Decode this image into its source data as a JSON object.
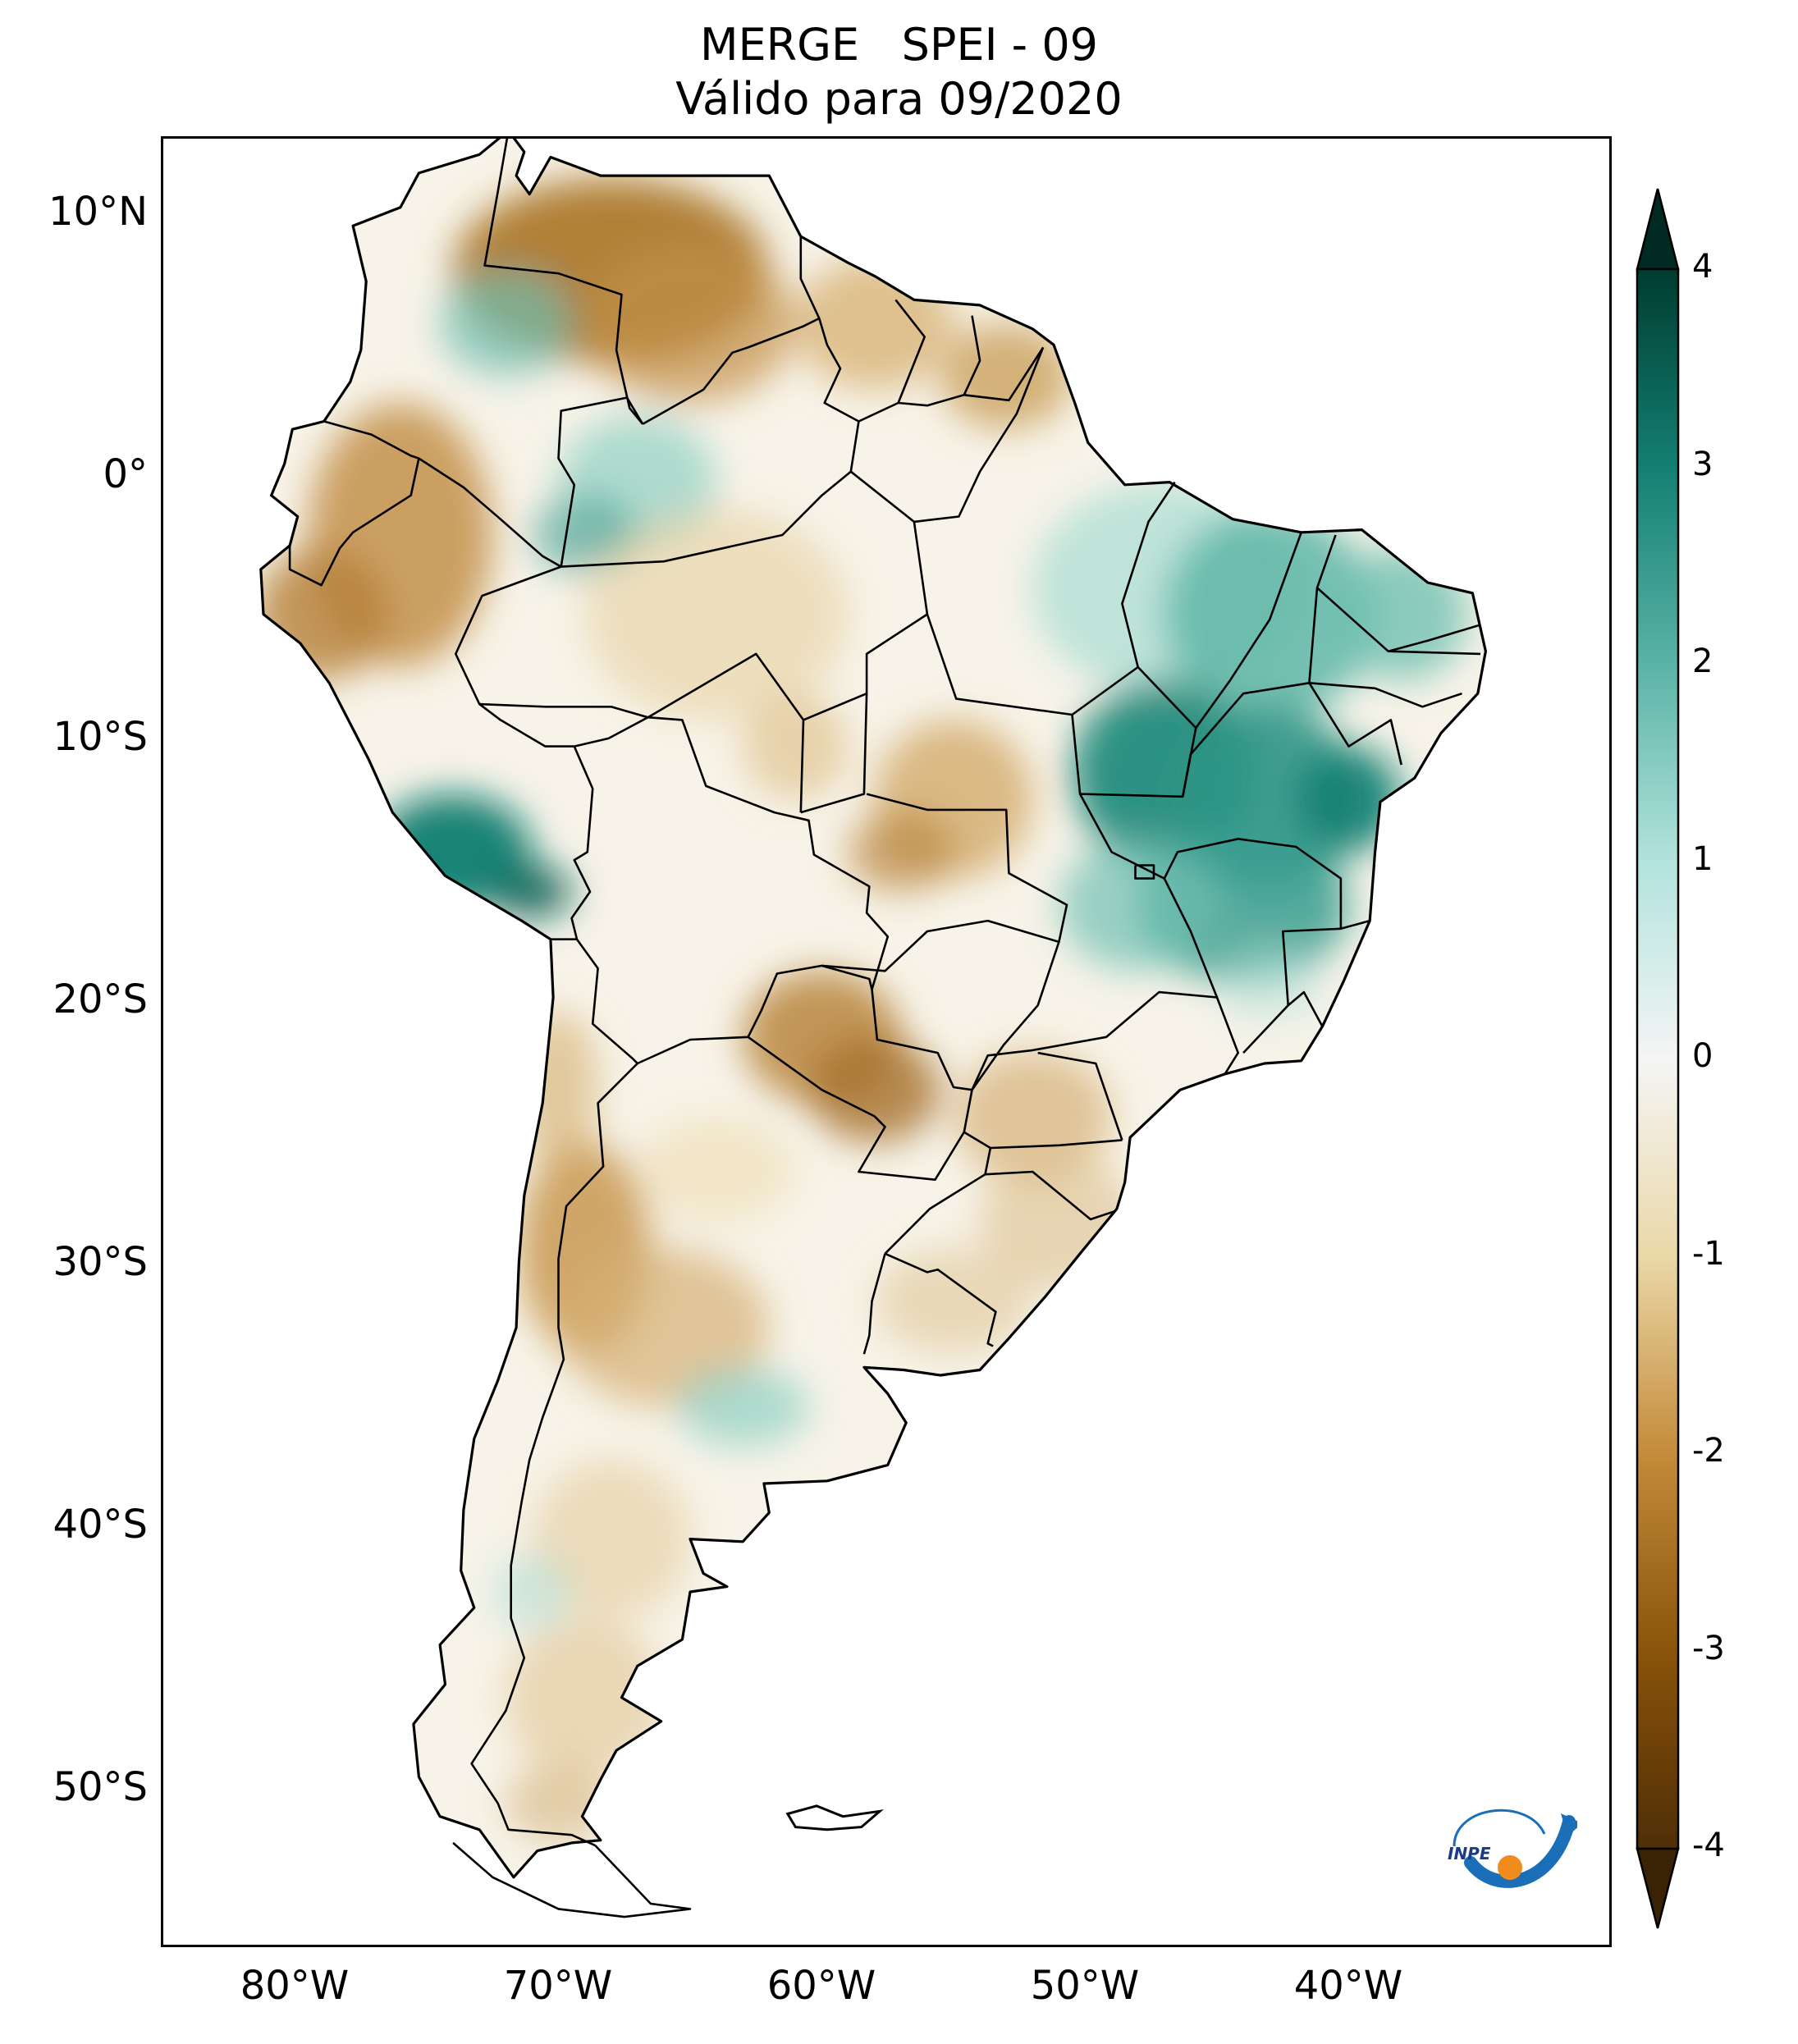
{
  "title": {
    "line1": "MERGE   SPEI - 09",
    "line2": "Válido para 09/2020"
  },
  "map": {
    "region": "South America",
    "projection": "PlateCarree",
    "lon_range": [
      -85,
      -30
    ],
    "lat_range": [
      -56,
      12
    ],
    "lat_ticks": [
      "10°N",
      "0°",
      "10°S",
      "20°S",
      "30°S",
      "40°S",
      "50°S"
    ],
    "lon_ticks": [
      "80°W",
      "70°W",
      "60°W",
      "50°W",
      "40°W"
    ],
    "variable": "SPEI-9",
    "colormap": "BrBG",
    "spatial_pattern": {
      "wet_regions": [
        "Northeast Brazil",
        "Central-east Brazil (Minas Gerais, Bahia, Goiás)",
        "Southern coast of Peru",
        "Central Colombia",
        "Central Argentina"
      ],
      "dry_regions": [
        "Venezuela",
        "Northern Peru / Ecuador interior",
        "Mato Grosso",
        "Paraguay",
        "Southern Brazil",
        "Western Argentina / Andes foothills",
        "Patagonia"
      ]
    }
  },
  "colorbar": {
    "min": -4,
    "max": 4,
    "extend": "both",
    "ticks": [
      "4",
      "3",
      "2",
      "1",
      "0",
      "-1",
      "-2",
      "-3",
      "-4"
    ],
    "colors": {
      "-4": "#4f2e07",
      "-3": "#8a540a",
      "-2": "#c48b3a",
      "-1": "#ead8a7",
      "0": "#f5f5f5",
      "1": "#b2e3dc",
      "2": "#5ab3a6",
      "3": "#137f72",
      "4": "#003c30"
    }
  },
  "logo": {
    "text": "INPE",
    "primary_color": "#1a6fb8",
    "accent_color": "#f08c1e"
  }
}
